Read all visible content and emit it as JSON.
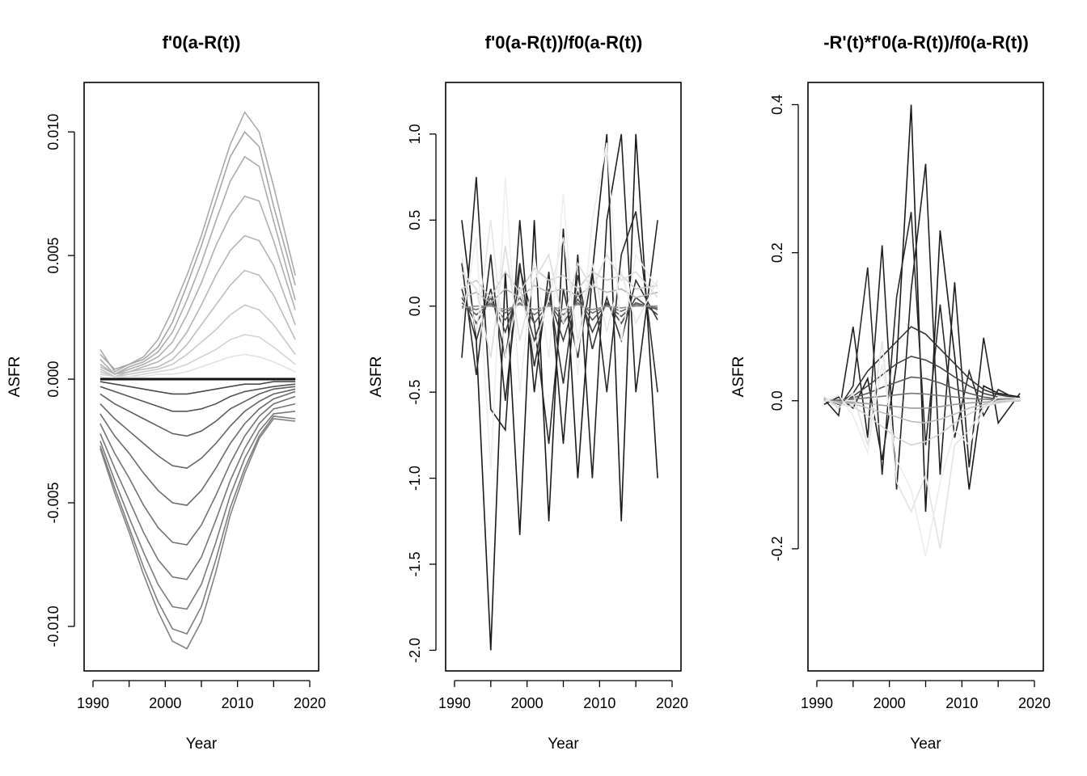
{
  "chart_data": [
    {
      "type": "line",
      "title": "f'0(a-R(t))",
      "xlabel": "Year",
      "ylabel": "ASFR",
      "xlim": [
        1990,
        2020
      ],
      "ylim": [
        -0.0118,
        0.012
      ],
      "xticks": [
        1990,
        2000,
        2010,
        2020
      ],
      "yticks": [
        -0.01,
        -0.005,
        0.0,
        0.005,
        0.01
      ],
      "ytick_labels": [
        "-0.010",
        "-0.005",
        "0.000",
        "0.005",
        "0.010"
      ],
      "grid": false,
      "reference_line": 0,
      "x": [
        1991,
        1993,
        1995,
        1997,
        1999,
        2001,
        2003,
        2005,
        2007,
        2009,
        2011,
        2013,
        2015,
        2018
      ],
      "series": [
        {
          "color": "#aaaaaa",
          "values": [
            0.0012,
            0.0003,
            0.0006,
            0.0009,
            0.0016,
            0.0028,
            0.0042,
            0.0058,
            0.0077,
            0.0095,
            0.0108,
            0.01,
            0.0078,
            0.0042
          ]
        },
        {
          "color": "#a6a6a6",
          "values": [
            0.001,
            0.0004,
            0.0006,
            0.0008,
            0.0013,
            0.0023,
            0.0038,
            0.0054,
            0.0072,
            0.009,
            0.01,
            0.0094,
            0.007,
            0.0038
          ]
        },
        {
          "color": "#acacac",
          "values": [
            0.0008,
            0.0002,
            0.0005,
            0.0007,
            0.0011,
            0.0019,
            0.0032,
            0.0047,
            0.0064,
            0.008,
            0.009,
            0.0086,
            0.0064,
            0.0032
          ]
        },
        {
          "color": "#b0b0b0",
          "values": [
            0.0006,
            0.0002,
            0.0004,
            0.0006,
            0.0009,
            0.0015,
            0.0026,
            0.0039,
            0.0054,
            0.0066,
            0.0074,
            0.0072,
            0.0056,
            0.0028
          ]
        },
        {
          "color": "#b5b5b5",
          "values": [
            0.0005,
            0.0002,
            0.0003,
            0.0005,
            0.0007,
            0.0011,
            0.0019,
            0.003,
            0.0042,
            0.0052,
            0.0058,
            0.0056,
            0.0046,
            0.0022
          ]
        },
        {
          "color": "#bdbdbd",
          "values": [
            0.0004,
            0.0001,
            0.0003,
            0.0004,
            0.0005,
            0.0008,
            0.0014,
            0.0022,
            0.003,
            0.0038,
            0.0044,
            0.0042,
            0.0034,
            0.0016
          ]
        },
        {
          "color": "#c8c8c8",
          "values": [
            0.0003,
            0.0001,
            0.0002,
            0.0003,
            0.0004,
            0.0006,
            0.001,
            0.0015,
            0.002,
            0.0026,
            0.003,
            0.0028,
            0.0022,
            0.001
          ]
        },
        {
          "color": "#d4d4d4",
          "values": [
            0.0002,
            0.0001,
            0.0001,
            0.0002,
            0.0003,
            0.0004,
            0.0006,
            0.0009,
            0.0012,
            0.0016,
            0.0018,
            0.0017,
            0.0013,
            0.0006
          ]
        },
        {
          "color": "#e2e2e2",
          "values": [
            0.0001,
            0.0,
            0.0001,
            0.0001,
            0.0002,
            0.0002,
            0.0003,
            0.0005,
            0.0007,
            0.0009,
            0.001,
            0.0009,
            0.0007,
            0.0003
          ]
        },
        {
          "color": "#4a4a4a",
          "values": [
            -0.0001,
            -0.0002,
            -0.0003,
            -0.0004,
            -0.0005,
            -0.0006,
            -0.0006,
            -0.0005,
            -0.0004,
            -0.0003,
            -0.0002,
            -0.0002,
            -0.0001,
            -0.0001
          ]
        },
        {
          "color": "#555555",
          "values": [
            -0.0003,
            -0.0005,
            -0.0007,
            -0.0009,
            -0.0011,
            -0.0013,
            -0.0013,
            -0.0012,
            -0.001,
            -0.0007,
            -0.0005,
            -0.0004,
            -0.0003,
            -0.0002
          ]
        },
        {
          "color": "#5e5e5e",
          "values": [
            -0.0006,
            -0.001,
            -0.0013,
            -0.0016,
            -0.0019,
            -0.0022,
            -0.0023,
            -0.0021,
            -0.0017,
            -0.0012,
            -0.0009,
            -0.0006,
            -0.0004,
            -0.0003
          ]
        },
        {
          "color": "#666666",
          "values": [
            -0.001,
            -0.0016,
            -0.0021,
            -0.0026,
            -0.0031,
            -0.0035,
            -0.0036,
            -0.0032,
            -0.0026,
            -0.0019,
            -0.0013,
            -0.0009,
            -0.0006,
            -0.0004
          ]
        },
        {
          "color": "#6c6c6c",
          "values": [
            -0.0014,
            -0.0023,
            -0.003,
            -0.0038,
            -0.0045,
            -0.005,
            -0.0051,
            -0.0045,
            -0.0036,
            -0.0026,
            -0.0018,
            -0.0012,
            -0.0008,
            -0.0005
          ]
        },
        {
          "color": "#727272",
          "values": [
            -0.0018,
            -0.003,
            -0.004,
            -0.0051,
            -0.006,
            -0.0066,
            -0.0067,
            -0.0059,
            -0.0047,
            -0.0034,
            -0.0023,
            -0.0015,
            -0.001,
            -0.0007
          ]
        },
        {
          "color": "#767676",
          "values": [
            -0.0022,
            -0.0036,
            -0.0049,
            -0.0062,
            -0.0073,
            -0.008,
            -0.0081,
            -0.0072,
            -0.0057,
            -0.0041,
            -0.0028,
            -0.0018,
            -0.0012,
            -0.001
          ]
        },
        {
          "color": "#7a7a7a",
          "values": [
            -0.0025,
            -0.0041,
            -0.0056,
            -0.007,
            -0.0083,
            -0.0092,
            -0.0093,
            -0.0083,
            -0.0066,
            -0.0047,
            -0.0032,
            -0.0021,
            -0.0014,
            -0.0013
          ]
        },
        {
          "color": "#7e7e7e",
          "values": [
            -0.0027,
            -0.0044,
            -0.006,
            -0.0076,
            -0.009,
            -0.0101,
            -0.0103,
            -0.0092,
            -0.0073,
            -0.0052,
            -0.0036,
            -0.0023,
            -0.0015,
            -0.0016
          ]
        },
        {
          "color": "#828282",
          "values": [
            -0.0028,
            -0.0046,
            -0.0062,
            -0.0079,
            -0.0094,
            -0.0106,
            -0.0109,
            -0.0098,
            -0.0078,
            -0.0055,
            -0.0038,
            -0.0024,
            -0.0016,
            -0.0017
          ]
        },
        {
          "color": "#111111",
          "values": [
            0.0,
            0.0,
            0.0,
            0.0,
            0.0,
            0.0,
            0.0,
            0.0,
            0.0,
            0.0,
            0.0,
            0.0,
            0.0,
            0.0
          ]
        }
      ]
    },
    {
      "type": "line",
      "title": "f'0(a-R(t))/f0(a-R(t))",
      "xlabel": "Year",
      "ylabel": "ASFR",
      "xlim": [
        1990,
        2020
      ],
      "ylim": [
        -2.12,
        1.3
      ],
      "xticks": [
        1990,
        2000,
        2010,
        2020
      ],
      "yticks": [
        -2.0,
        -1.5,
        -1.0,
        -0.5,
        0.0,
        0.5,
        1.0
      ],
      "ytick_labels": [
        "-2.0",
        "-1.5",
        "-1.0",
        "-0.5",
        "0.0",
        "0.5",
        "1.0"
      ],
      "grid": false,
      "x": [
        1991,
        1993,
        1995,
        1997,
        1999,
        2001,
        2003,
        2005,
        2007,
        2009,
        2011,
        2013,
        2015,
        2018
      ],
      "series": [
        {
          "color": "#1a1a1a",
          "values": [
            0.5,
            -0.2,
            -2.0,
            0.2,
            -1.33,
            0.5,
            -1.25,
            0.45,
            -1.0,
            0.2,
            1.0,
            -1.25,
            1.0,
            -1.0
          ]
        },
        {
          "color": "#222222",
          "values": [
            -0.3,
            0.75,
            -0.6,
            -0.72,
            0.5,
            -0.5,
            0.2,
            -0.8,
            0.3,
            -1.0,
            0.5,
            1.0,
            -0.5,
            0.5
          ]
        },
        {
          "color": "#2a2a2a",
          "values": [
            0.25,
            -0.4,
            0.3,
            -0.55,
            0.22,
            -0.1,
            -0.8,
            0.1,
            -0.3,
            0.2,
            -0.5,
            0.3,
            0.55,
            -0.5
          ]
        },
        {
          "color": "#333333",
          "values": [
            0.1,
            -0.2,
            0.1,
            -0.3,
            0.25,
            -0.35,
            0.1,
            -0.45,
            0.18,
            -0.25,
            0.05,
            -0.2,
            0.15,
            -0.08
          ]
        },
        {
          "color": "#3f3f3f",
          "values": [
            0.05,
            -0.1,
            0.05,
            -0.15,
            0.1,
            -0.2,
            0.05,
            -0.2,
            0.08,
            -0.15,
            0.02,
            -0.1,
            0.05,
            -0.05
          ]
        },
        {
          "color": "#555555",
          "values": [
            0.02,
            -0.05,
            0.02,
            -0.08,
            0.05,
            -0.1,
            0.02,
            -0.1,
            0.04,
            -0.08,
            0.01,
            -0.06,
            0.02,
            -0.02
          ]
        },
        {
          "color": "#6e6e6e",
          "values": [
            0.0,
            -0.02,
            0.01,
            -0.04,
            0.02,
            -0.05,
            0.01,
            -0.05,
            0.02,
            -0.04,
            0.0,
            -0.03,
            0.01,
            -0.01
          ]
        },
        {
          "color": "#8c8c8c",
          "values": [
            -0.01,
            0.0,
            0.0,
            -0.02,
            0.01,
            -0.02,
            0.0,
            -0.02,
            0.01,
            -0.02,
            0.0,
            -0.01,
            0.0,
            0.0
          ]
        },
        {
          "color": "#b4b4b4",
          "values": [
            0.05,
            0.08,
            0.02,
            0.1,
            0.05,
            0.12,
            0.08,
            0.1,
            0.06,
            0.12,
            0.08,
            0.1,
            0.05,
            0.08
          ]
        },
        {
          "color": "#cccccc",
          "values": [
            0.1,
            0.15,
            0.05,
            0.2,
            0.08,
            0.22,
            0.15,
            0.18,
            0.1,
            0.2,
            0.15,
            0.18,
            0.1,
            0.12
          ]
        },
        {
          "color": "#dddddd",
          "values": [
            0.2,
            0.1,
            -0.3,
            0.35,
            -0.2,
            0.15,
            0.3,
            -0.1,
            0.25,
            0.1,
            0.3,
            0.15,
            0.2,
            0.05
          ]
        },
        {
          "color": "#e6e6e6",
          "values": [
            0.28,
            -0.15,
            0.5,
            -0.3,
            0.1,
            -0.25,
            0.05,
            0.4,
            -0.2,
            0.25,
            -0.15,
            0.2,
            -0.1,
            0.15
          ]
        },
        {
          "color": "#eeeeee",
          "values": [
            -0.1,
            0.4,
            -0.95,
            0.75,
            -0.5,
            0.3,
            -0.3,
            0.65,
            -0.4,
            0.5,
            0.95,
            -0.2,
            0.3,
            0.1
          ]
        }
      ]
    },
    {
      "type": "line",
      "title": "-R'(t)*f'0(a-R(t))/f0(a-R(t))",
      "xlabel": "Year",
      "ylabel": "ASFR",
      "xlim": [
        1990,
        2020
      ],
      "ylim": [
        -0.365,
        0.43
      ],
      "xticks": [
        1990,
        2000,
        2010,
        2020
      ],
      "yticks": [
        -0.2,
        0.0,
        0.2,
        0.4
      ],
      "ytick_labels": [
        "-0.2",
        "0.0",
        "0.2",
        "0.4"
      ],
      "grid": false,
      "x": [
        1991,
        1993,
        1995,
        1997,
        1999,
        2001,
        2003,
        2005,
        2007,
        2009,
        2011,
        2013,
        2015,
        2018
      ],
      "series": [
        {
          "color": "#1a1a1a",
          "values": [
            -0.005,
            0.005,
            -0.01,
            0.03,
            -0.08,
            0.05,
            0.4,
            -0.15,
            0.23,
            0.06,
            -0.12,
            0.02,
            0.01,
            0.005
          ]
        },
        {
          "color": "#222222",
          "values": [
            0.002,
            -0.02,
            0.1,
            -0.05,
            0.21,
            -0.12,
            0.15,
            0.32,
            -0.1,
            0.16,
            -0.09,
            0.085,
            -0.03,
            0.01
          ]
        },
        {
          "color": "#2a2a2a",
          "values": [
            0.005,
            -0.01,
            0.02,
            0.18,
            -0.1,
            0.14,
            0.255,
            -0.06,
            0.13,
            -0.05,
            0.04,
            -0.02,
            0.015,
            0.0
          ]
        },
        {
          "color": "#333333",
          "values": [
            0.003,
            -0.005,
            0.01,
            0.04,
            0.06,
            0.08,
            0.1,
            0.09,
            0.07,
            0.05,
            0.03,
            0.015,
            0.008,
            0.003
          ]
        },
        {
          "color": "#444444",
          "values": [
            0.002,
            -0.003,
            0.006,
            0.02,
            0.035,
            0.05,
            0.06,
            0.055,
            0.045,
            0.032,
            0.02,
            0.01,
            0.005,
            0.002
          ]
        },
        {
          "color": "#5a5a5a",
          "values": [
            0.001,
            0.0,
            0.004,
            0.01,
            0.018,
            0.025,
            0.032,
            0.03,
            0.024,
            0.016,
            0.01,
            0.005,
            0.002,
            0.001
          ]
        },
        {
          "color": "#777777",
          "values": [
            0.0,
            0.001,
            0.002,
            0.004,
            0.006,
            0.008,
            0.01,
            0.009,
            0.007,
            0.005,
            0.003,
            0.002,
            0.001,
            0.0
          ]
        },
        {
          "color": "#999999",
          "values": [
            0.0,
            -0.001,
            -0.002,
            -0.004,
            -0.006,
            -0.008,
            -0.01,
            -0.01,
            -0.008,
            -0.005,
            -0.003,
            -0.002,
            -0.001,
            0.0
          ]
        },
        {
          "color": "#bbbbbb",
          "values": [
            0.0,
            -0.002,
            -0.004,
            -0.01,
            -0.016,
            -0.022,
            -0.028,
            -0.03,
            -0.025,
            -0.018,
            -0.01,
            -0.005,
            -0.002,
            0.0
          ]
        },
        {
          "color": "#d2d2d2",
          "values": [
            0.002,
            -0.004,
            -0.008,
            -0.02,
            -0.035,
            -0.05,
            -0.06,
            -0.055,
            -0.045,
            -0.03,
            -0.018,
            -0.008,
            -0.003,
            0.001
          ]
        },
        {
          "color": "#e2e2e2",
          "values": [
            0.005,
            -0.01,
            0.01,
            -0.06,
            0.08,
            -0.11,
            -0.15,
            -0.1,
            -0.2,
            -0.06,
            -0.04,
            -0.01,
            0.0,
            0.002
          ]
        },
        {
          "color": "#ececec",
          "values": [
            -0.002,
            0.008,
            -0.02,
            -0.07,
            0.05,
            -0.08,
            -0.12,
            -0.21,
            -0.11,
            -0.04,
            -0.06,
            -0.01,
            0.005,
            0.003
          ]
        }
      ]
    }
  ]
}
